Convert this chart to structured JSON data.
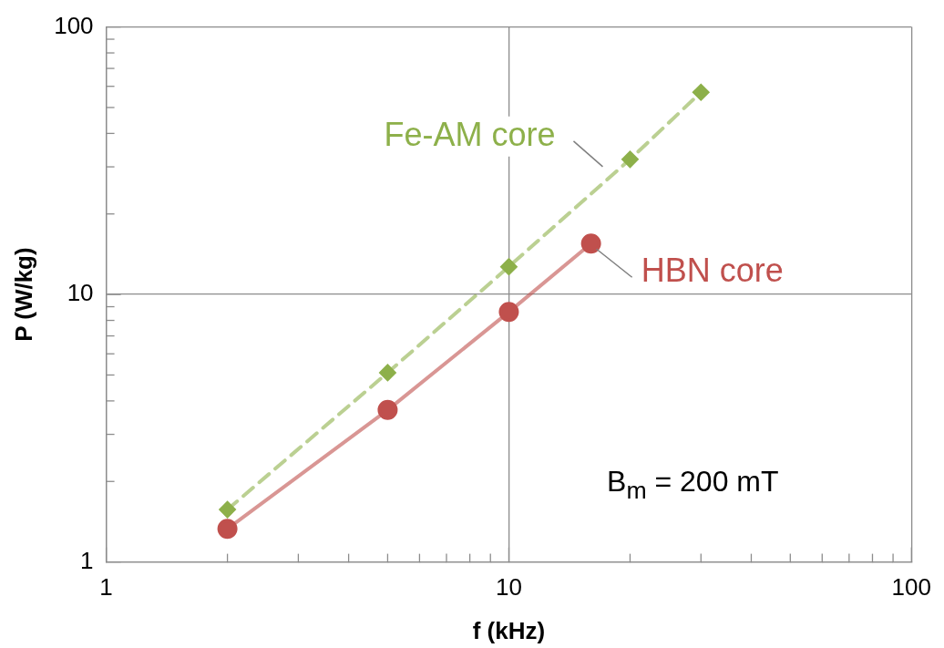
{
  "chart_data": {
    "type": "line",
    "xlabel": "f (kHz)",
    "ylabel": "P (W/kg)",
    "log": "xy",
    "grid": true,
    "legend": false,
    "xlim": [
      1,
      100
    ],
    "ylim": [
      1,
      100
    ],
    "xticks": [
      1,
      {
        "value": 2,
        "label": null
      },
      {
        "value": 3,
        "label": null
      },
      {
        "value": 4,
        "label": null
      },
      {
        "value": 5,
        "label": null
      },
      {
        "value": 6,
        "label": null
      },
      {
        "value": 7,
        "label": null
      },
      {
        "value": 8,
        "label": null
      },
      {
        "value": 9,
        "label": null
      },
      10,
      {
        "value": 20,
        "label": null
      },
      {
        "value": 30,
        "label": null
      },
      {
        "value": 40,
        "label": null
      },
      {
        "value": 50,
        "label": null
      },
      {
        "value": 60,
        "label": null
      },
      {
        "value": 70,
        "label": null
      },
      {
        "value": 80,
        "label": null
      },
      {
        "value": 90,
        "label": null
      },
      100
    ],
    "yticks": [
      1,
      {
        "value": 2,
        "label": null
      },
      {
        "value": 3,
        "label": null
      },
      {
        "value": 4,
        "label": null
      },
      {
        "value": 5,
        "label": null
      },
      {
        "value": 6,
        "label": null
      },
      {
        "value": 7,
        "label": null
      },
      {
        "value": 8,
        "label": null
      },
      {
        "value": 9,
        "label": null
      },
      10,
      {
        "value": 20,
        "label": null
      },
      {
        "value": 30,
        "label": null
      },
      {
        "value": 40,
        "label": null
      },
      {
        "value": 50,
        "label": null
      },
      {
        "value": 60,
        "label": null
      },
      {
        "value": 70,
        "label": null
      },
      {
        "value": 80,
        "label": null
      },
      {
        "value": 90,
        "label": null
      },
      100
    ],
    "series": [
      {
        "name": "Fe-AM core",
        "color": "#8db04a",
        "marker": "diamond",
        "line_style": "dashed",
        "x": [
          2,
          5,
          10,
          20,
          30
        ],
        "values": [
          1.57,
          5.1,
          12.7,
          32,
          57
        ]
      },
      {
        "name": "HBN core",
        "color": "#c0504d",
        "marker": "circle",
        "line_style": "solid",
        "x": [
          2,
          5,
          10,
          16
        ],
        "values": [
          1.33,
          3.7,
          8.6,
          15.5
        ]
      }
    ],
    "annotations": [
      "B$_{m}$ = 200 mT"
    ]
  }
}
